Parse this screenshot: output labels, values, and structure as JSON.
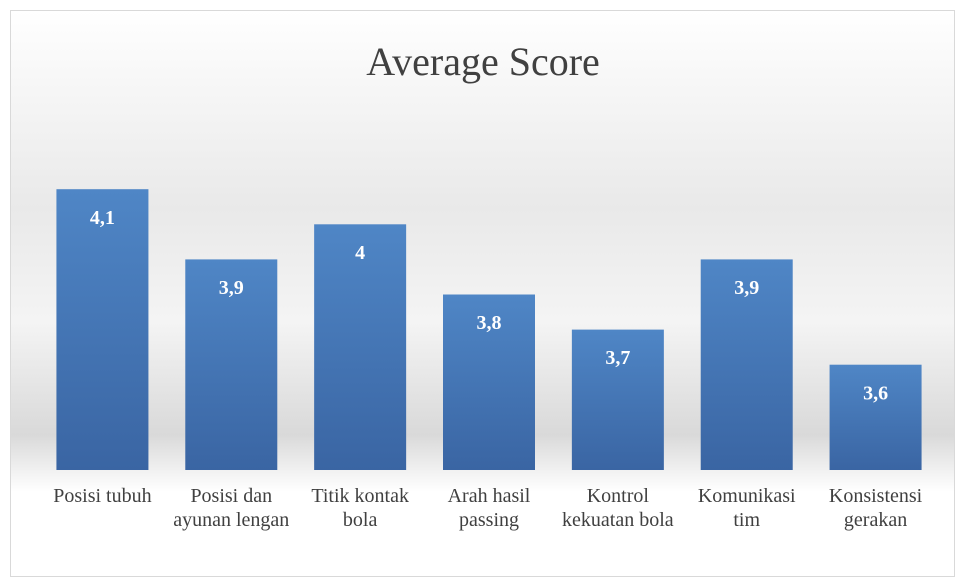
{
  "chart_data": {
    "type": "bar",
    "title": "Average Score",
    "categories": [
      "Posisi tubuh",
      "Posisi dan ayunan lengan",
      "Titik kontak bola",
      "Arah hasil passing",
      "Kontrol kekuatan bola",
      "Komunikasi tim",
      "Konsistensi gerakan"
    ],
    "values": [
      4.1,
      3.9,
      4,
      3.8,
      3.7,
      3.9,
      3.6
    ],
    "value_labels": [
      "4,1",
      "3,9",
      "4",
      "3,8",
      "3,7",
      "3,9",
      "3,6"
    ],
    "color": "#4a7ebb",
    "ylim": [
      3.3,
      4.3
    ]
  }
}
